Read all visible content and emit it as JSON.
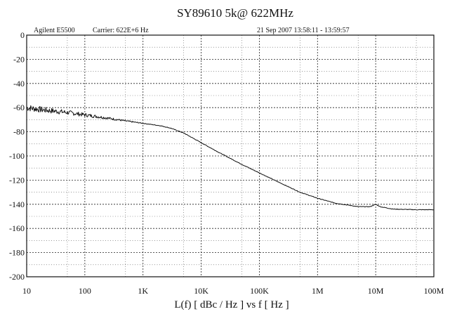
{
  "chart_data": {
    "type": "line",
    "title": "SY89610   5k@ 622MHz",
    "header": {
      "instrument": "Agilent E5500",
      "carrier": "Carrier: 622E+6 Hz",
      "date": "21 Sep 2007  13:58:11 - 13:59:57"
    },
    "xlabel": "L(f)  [ dBc / Hz ]  vs  f  [ Hz ]",
    "ylabel": "",
    "x_scale": "log",
    "xlim": [
      10,
      100000000
    ],
    "ylim": [
      -200,
      0
    ],
    "x_ticks": [
      {
        "value": 10,
        "label": "10"
      },
      {
        "value": 100,
        "label": "100"
      },
      {
        "value": 1000,
        "label": "1K"
      },
      {
        "value": 10000,
        "label": "10K"
      },
      {
        "value": 100000,
        "label": "100K"
      },
      {
        "value": 1000000,
        "label": "1M"
      },
      {
        "value": 10000000,
        "label": "10M"
      },
      {
        "value": 100000000,
        "label": "100M"
      }
    ],
    "y_ticks": [
      {
        "value": 0,
        "label": "0"
      },
      {
        "value": -20,
        "label": "-20"
      },
      {
        "value": -40,
        "label": "-40"
      },
      {
        "value": -60,
        "label": "-60"
      },
      {
        "value": -80,
        "label": "-80"
      },
      {
        "value": -100,
        "label": "-100"
      },
      {
        "value": -120,
        "label": "-120"
      },
      {
        "value": -140,
        "label": "-140"
      },
      {
        "value": -160,
        "label": "-160"
      },
      {
        "value": -180,
        "label": "-180"
      },
      {
        "value": -200,
        "label": "-200"
      }
    ],
    "grid": true,
    "series": [
      {
        "x": [
          10,
          20,
          50,
          100,
          200,
          500,
          1000,
          2000,
          3000,
          5000,
          10000,
          20000,
          50000,
          100000,
          200000,
          500000,
          1000000,
          2000000,
          5000000,
          8000000,
          10000000,
          12000000,
          20000000,
          50000000,
          100000000
        ],
        "y": [
          -60,
          -62,
          -64,
          -66,
          -68,
          -71,
          -73,
          -75,
          -77,
          -81,
          -89,
          -97,
          -107,
          -114,
          -121,
          -130,
          -135,
          -139,
          -142,
          -142,
          -140,
          -142,
          -144,
          -144.5,
          -144.5
        ]
      }
    ]
  }
}
